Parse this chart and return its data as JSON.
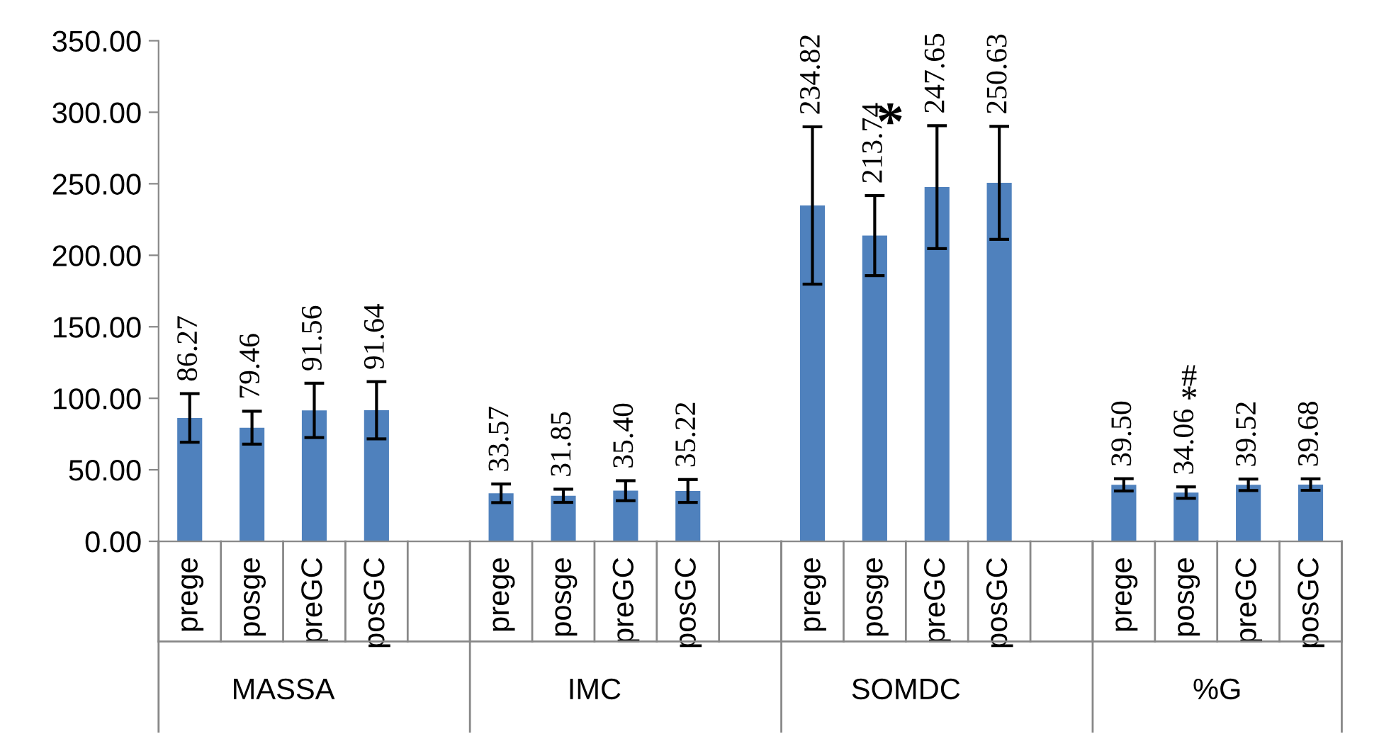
{
  "chart_data": {
    "type": "bar",
    "categories": [
      "prege",
      "posge",
      "preGC",
      "posGC",
      null,
      "prege",
      "posge",
      "preGC",
      "posGC",
      null,
      "prege",
      "posge",
      "preGC",
      "posGC",
      null,
      "prege",
      "posge",
      "preGC",
      "posGC"
    ],
    "values": [
      86.27,
      79.46,
      91.56,
      91.64,
      null,
      33.57,
      31.85,
      35.4,
      35.22,
      null,
      234.82,
      213.74,
      247.65,
      250.63,
      null,
      39.5,
      34.06,
      39.52,
      39.68
    ],
    "errors": [
      17,
      11.5,
      19,
      20,
      null,
      6.5,
      4.6,
      7,
      8,
      null,
      55,
      28,
      43,
      39.5,
      null,
      4.3,
      4,
      4,
      4
    ],
    "value_labels": [
      "86.27",
      "79.46",
      "91.56",
      "91.64",
      null,
      "33.57",
      "31.85",
      "35.40",
      "35.22",
      null,
      "234.82",
      "213.74",
      "247.65",
      "250.63",
      null,
      "39.50",
      "34.06",
      "39.52",
      "39.68"
    ],
    "color": "#4f81bd",
    "ylim": [
      0,
      350
    ],
    "yticks": [
      {
        "value": 0,
        "label": "0.00"
      },
      {
        "value": 50,
        "label": "50.00"
      },
      {
        "value": 100,
        "label": "100.00"
      },
      {
        "value": 150,
        "label": "150.00"
      },
      {
        "value": 200,
        "label": "200.00"
      },
      {
        "value": 250,
        "label": "250.00"
      },
      {
        "value": 300,
        "label": "300.00"
      },
      {
        "value": 350,
        "label": "350.00"
      }
    ],
    "annotations": [
      "MASSA",
      "IMC",
      "SOMDC",
      "%G",
      "*",
      "*",
      "#"
    ],
    "grid": false,
    "legend": false
  }
}
